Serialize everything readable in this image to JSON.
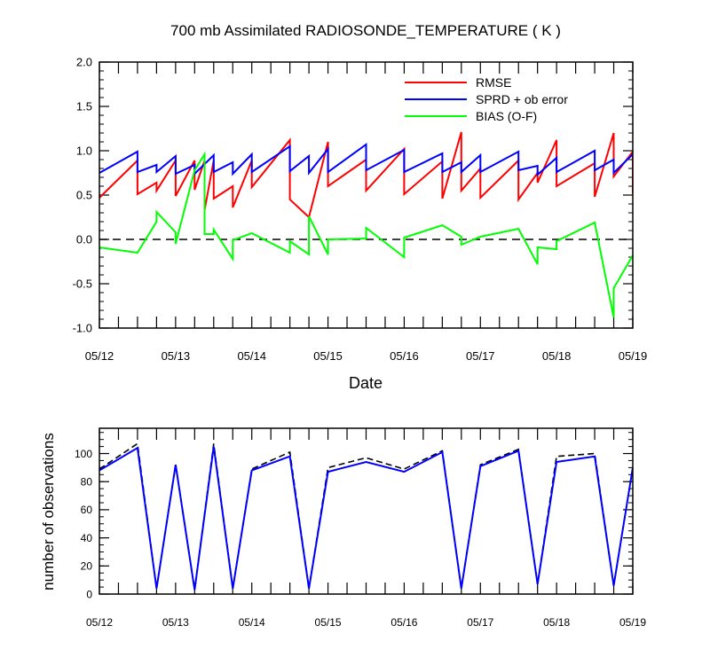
{
  "chart_data": [
    {
      "type": "line",
      "title": "700 mb Assimilated RADIOSONDE_TEMPERATURE ( K )",
      "xlabel": "Date",
      "ylabel": "",
      "x_unit": "days since 05/12 00Z",
      "xlim": [
        0,
        7
      ],
      "ylim": [
        -1.0,
        2.0
      ],
      "x_tick_labels": [
        "05/12",
        "05/13",
        "05/14",
        "05/15",
        "05/16",
        "05/17",
        "05/18",
        "05/19"
      ],
      "y_tick_labels": [
        "-1.0",
        "-0.5",
        "0.0",
        "0.5",
        "1.0",
        "1.5",
        "2.0"
      ],
      "y_ticks": [
        -1.0,
        -0.5,
        0.0,
        0.5,
        1.0,
        1.5,
        2.0
      ],
      "legend_position": "top-right",
      "zero_line": {
        "y": 0.0,
        "style": "dashed",
        "color": "#000000"
      },
      "series": [
        {
          "name": "RMSE",
          "color": "#ff0000",
          "points": [
            [
              0,
              0.47
            ],
            [
              0.5,
              0.89
            ],
            [
              0.5,
              0.51
            ],
            [
              0.75,
              0.64
            ],
            [
              0.75,
              0.55
            ],
            [
              1,
              0.89
            ],
            [
              1,
              0.49
            ],
            [
              1.25,
              0.89
            ],
            [
              1.25,
              0.56
            ],
            [
              1.38,
              0.89
            ],
            [
              1.38,
              0.33
            ],
            [
              1.5,
              0.89
            ],
            [
              1.5,
              0.46
            ],
            [
              1.75,
              0.6
            ],
            [
              1.75,
              0.36
            ],
            [
              2,
              0.89
            ],
            [
              2,
              0.59
            ],
            [
              2.5,
              1.12
            ],
            [
              2.5,
              0.45
            ],
            [
              2.75,
              0.25
            ],
            [
              3,
              1.1
            ],
            [
              3,
              0.6
            ],
            [
              3.5,
              0.9
            ],
            [
              3.5,
              0.55
            ],
            [
              4,
              1.02
            ],
            [
              4,
              0.51
            ],
            [
              4.5,
              0.88
            ],
            [
              4.5,
              0.46
            ],
            [
              4.75,
              1.21
            ],
            [
              4.75,
              0.55
            ],
            [
              5,
              0.8
            ],
            [
              5,
              0.47
            ],
            [
              5.5,
              0.89
            ],
            [
              5.5,
              0.45
            ],
            [
              5.75,
              0.75
            ],
            [
              5.75,
              0.64
            ],
            [
              6,
              1.12
            ],
            [
              6,
              0.6
            ],
            [
              6.5,
              0.86
            ],
            [
              6.5,
              0.48
            ],
            [
              6.75,
              1.2
            ],
            [
              6.75,
              0.71
            ],
            [
              7,
              0.99
            ],
            [
              7,
              0.52
            ]
          ]
        },
        {
          "name": "SPRD + ob error",
          "color": "#0000ff",
          "points": [
            [
              0,
              0.75
            ],
            [
              0.5,
              0.99
            ],
            [
              0.5,
              0.76
            ],
            [
              0.75,
              0.84
            ],
            [
              0.75,
              0.76
            ],
            [
              1,
              0.94
            ],
            [
              1,
              0.74
            ],
            [
              1.25,
              0.84
            ],
            [
              1.25,
              0.74
            ],
            [
              1.5,
              0.95
            ],
            [
              1.5,
              0.76
            ],
            [
              1.75,
              0.87
            ],
            [
              1.75,
              0.74
            ],
            [
              2,
              0.96
            ],
            [
              2,
              0.76
            ],
            [
              2.5,
              1.05
            ],
            [
              2.5,
              0.77
            ],
            [
              2.75,
              0.94
            ],
            [
              2.75,
              0.75
            ],
            [
              3,
              1.02
            ],
            [
              3,
              0.76
            ],
            [
              3.5,
              1.07
            ],
            [
              3.5,
              0.78
            ],
            [
              4,
              1.01
            ],
            [
              4,
              0.76
            ],
            [
              4.5,
              0.97
            ],
            [
              4.5,
              0.76
            ],
            [
              4.75,
              0.87
            ],
            [
              4.75,
              0.76
            ],
            [
              5,
              0.95
            ],
            [
              5,
              0.76
            ],
            [
              5.5,
              0.99
            ],
            [
              5.5,
              0.78
            ],
            [
              5.75,
              0.83
            ],
            [
              5.75,
              0.73
            ],
            [
              6,
              0.92
            ],
            [
              6,
              0.76
            ],
            [
              6.5,
              1.0
            ],
            [
              6.5,
              0.78
            ],
            [
              6.75,
              0.9
            ],
            [
              6.75,
              0.75
            ],
            [
              7,
              0.96
            ]
          ]
        },
        {
          "name": "BIAS (O-F)",
          "color": "#00ff00",
          "points": [
            [
              0,
              -0.09
            ],
            [
              0.5,
              -0.15
            ],
            [
              0.75,
              0.2
            ],
            [
              0.75,
              0.31
            ],
            [
              1,
              0.08
            ],
            [
              1,
              -0.05
            ],
            [
              1.25,
              0.78
            ],
            [
              1.38,
              0.96
            ],
            [
              1.38,
              0.06
            ],
            [
              1.5,
              0.06
            ],
            [
              1.5,
              0.11
            ],
            [
              1.75,
              -0.22
            ],
            [
              1.75,
              -0.01
            ],
            [
              2,
              0.07
            ],
            [
              2.5,
              -0.15
            ],
            [
              2.5,
              -0.02
            ],
            [
              2.75,
              -0.17
            ],
            [
              2.75,
              0.26
            ],
            [
              3,
              -0.17
            ],
            [
              3,
              0.0
            ],
            [
              3.5,
              0.01
            ],
            [
              3.5,
              0.13
            ],
            [
              4,
              -0.2
            ],
            [
              4,
              0.02
            ],
            [
              4.5,
              0.16
            ],
            [
              4.75,
              0.03
            ],
            [
              4.75,
              -0.06
            ],
            [
              5,
              0.03
            ],
            [
              5.5,
              0.12
            ],
            [
              5.75,
              -0.28
            ],
            [
              5.75,
              -0.09
            ],
            [
              6,
              -0.11
            ],
            [
              6,
              -0.02
            ],
            [
              6.5,
              0.19
            ],
            [
              6.75,
              -0.88
            ],
            [
              6.75,
              -0.55
            ],
            [
              7,
              -0.18
            ]
          ]
        }
      ]
    },
    {
      "type": "line",
      "title": "",
      "xlabel": "",
      "ylabel": "number of observations",
      "x_unit": "days since 05/12 00Z",
      "xlim": [
        0,
        7
      ],
      "ylim": [
        0,
        118
      ],
      "x_tick_labels": [
        "05/12",
        "05/13",
        "05/14",
        "05/15",
        "05/16",
        "05/17",
        "05/18",
        "05/19"
      ],
      "y_tick_labels": [
        "0",
        "20",
        "40",
        "60",
        "80",
        "100"
      ],
      "y_ticks": [
        0,
        20,
        40,
        60,
        80,
        100
      ],
      "series": [
        {
          "name": "",
          "style": "dashed",
          "color": "#000000",
          "x": [
            0,
            0.5,
            0.75,
            1,
            1.25,
            1.5,
            1.75,
            2,
            2.5,
            2.75,
            3,
            3.5,
            4,
            4.5,
            4.75,
            5,
            5.5,
            5.75,
            6,
            6.5,
            6.75,
            7
          ],
          "values": [
            89,
            107,
            4,
            92,
            3,
            107,
            4,
            89,
            101,
            4,
            90,
            97,
            89,
            102,
            4,
            92,
            103,
            7,
            98,
            100,
            6,
            90
          ]
        },
        {
          "name": "",
          "style": "solid",
          "color": "#0000ff",
          "x": [
            0,
            0.5,
            0.75,
            1,
            1.25,
            1.5,
            1.75,
            2,
            2.5,
            2.75,
            3,
            3.5,
            4,
            4.5,
            4.75,
            5,
            5.5,
            5.75,
            6,
            6.5,
            6.75,
            7
          ],
          "values": [
            88,
            104,
            4,
            92,
            3,
            105,
            4,
            88,
            98,
            4,
            87,
            94,
            87,
            101,
            4,
            91,
            102,
            7,
            94,
            98,
            6,
            90
          ]
        }
      ]
    }
  ]
}
